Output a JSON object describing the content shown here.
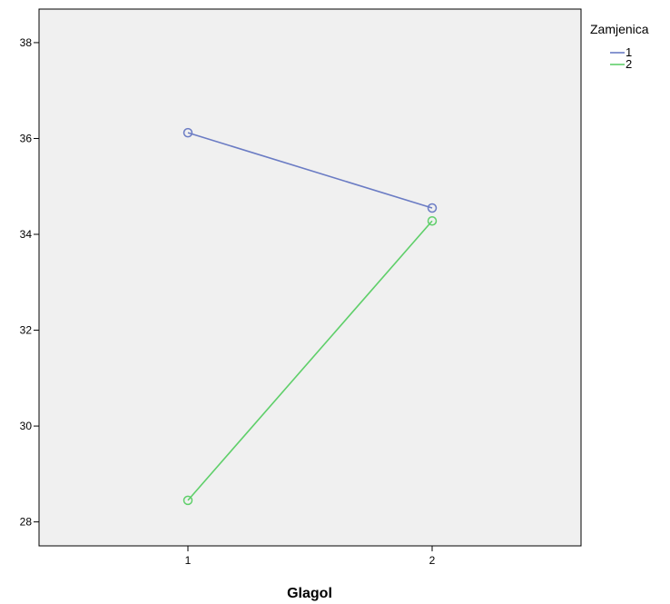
{
  "chart_data": {
    "type": "line",
    "title": "",
    "xlabel": "Glagol",
    "ylabel": "",
    "categories": [
      "1",
      "2"
    ],
    "ylim": [
      27.5,
      38.7
    ],
    "yticks": [
      28,
      30,
      32,
      34,
      36,
      38
    ],
    "grid": false,
    "legend": {
      "title": "Zamjenica",
      "position": "top-right"
    },
    "series": [
      {
        "name": "1",
        "values": [
          36.12,
          34.55
        ],
        "color": "#6b7cc4"
      },
      {
        "name": "2",
        "values": [
          28.45,
          34.28
        ],
        "color": "#5fcf6a"
      }
    ],
    "plot_background": "#f0f0f0",
    "marker": "open-circle"
  }
}
